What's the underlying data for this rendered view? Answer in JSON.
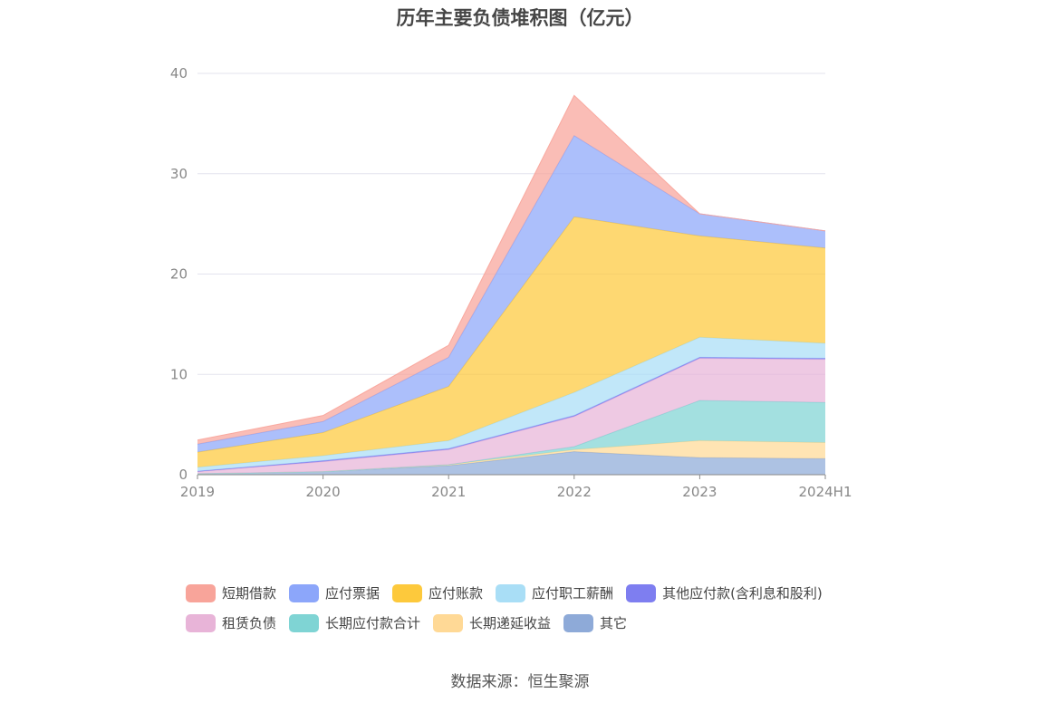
{
  "title": "历年主要负债堆积图（亿元）",
  "source": "数据来源：恒生聚源",
  "chart_data": {
    "type": "area",
    "stacked": true,
    "categories": [
      "2019",
      "2020",
      "2021",
      "2022",
      "2023",
      "2024H1"
    ],
    "y_ticks": [
      "0",
      "10",
      "20",
      "30",
      "40"
    ],
    "ylim": [
      0,
      40
    ],
    "grid": true,
    "legend_position": "bottom",
    "series": [
      {
        "name": "其它",
        "color": "#8eaad8",
        "values": [
          0.1,
          0.3,
          0.9,
          2.3,
          1.7,
          1.6
        ]
      },
      {
        "name": "长期递延收益",
        "color": "#ffd996",
        "values": [
          0.0,
          0.0,
          0.1,
          0.2,
          1.7,
          1.6
        ]
      },
      {
        "name": "长期应付款合计",
        "color": "#7fd4d4",
        "values": [
          0.0,
          0.0,
          0.0,
          0.3,
          4.0,
          4.0
        ]
      },
      {
        "name": "租赁负债",
        "color": "#e8b4d8",
        "values": [
          0.2,
          1.0,
          1.5,
          3.0,
          4.2,
          4.3
        ]
      },
      {
        "name": "其他应付款(含利息和股利)",
        "color": "#7e7ef0",
        "values": [
          0.05,
          0.1,
          0.1,
          0.1,
          0.1,
          0.1
        ]
      },
      {
        "name": "应付职工薪酬",
        "color": "#a9def6",
        "values": [
          0.4,
          0.5,
          0.8,
          2.3,
          2.0,
          1.5
        ]
      },
      {
        "name": "应付账款",
        "color": "#fdc93c",
        "values": [
          1.5,
          2.3,
          5.4,
          17.5,
          10.1,
          9.5
        ]
      },
      {
        "name": "应付票据",
        "color": "#8ca6fa",
        "values": [
          0.8,
          1.1,
          2.9,
          8.1,
          2.2,
          1.7
        ]
      },
      {
        "name": "短期借款",
        "color": "#f8a49a",
        "values": [
          0.4,
          0.6,
          1.2,
          4.0,
          0.0,
          0.0
        ]
      }
    ]
  },
  "legend_rows": [
    [
      {
        "name": "短期借款",
        "color": "#f8a49a"
      },
      {
        "name": "应付票据",
        "color": "#8ca6fa"
      },
      {
        "name": "应付账款",
        "color": "#fdc93c"
      },
      {
        "name": "应付职工薪酬",
        "color": "#a9def6"
      },
      {
        "name": "其他应付款(含利息和股利)",
        "color": "#7e7ef0"
      }
    ],
    [
      {
        "name": "租赁负债",
        "color": "#e8b4d8"
      },
      {
        "name": "长期应付款合计",
        "color": "#7fd4d4"
      },
      {
        "name": "长期递延收益",
        "color": "#ffd996"
      },
      {
        "name": "其它",
        "color": "#8eaad8"
      }
    ]
  ]
}
